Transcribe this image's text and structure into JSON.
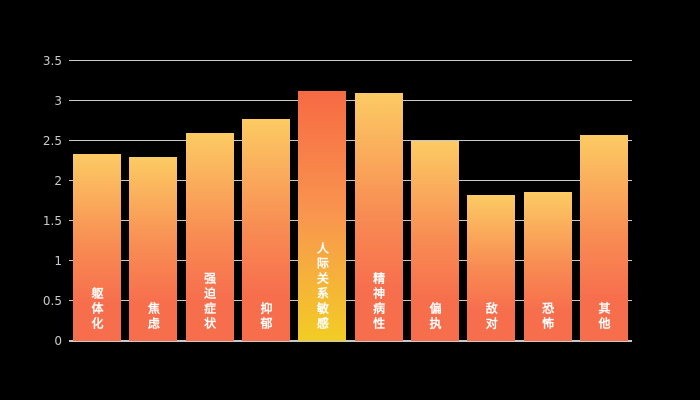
{
  "page": {
    "background": "#000000"
  },
  "chart_data": {
    "type": "bar",
    "title": "",
    "xlabel": "",
    "ylabel": "",
    "categories": [
      "躯体化",
      "焦虑",
      "强迫症状",
      "抑郁",
      "人际关系敏感",
      "精神病性",
      "偏执",
      "敌对",
      "恐怖",
      "其他"
    ],
    "values": [
      2.34,
      2.3,
      2.6,
      2.78,
      3.12,
      3.1,
      2.5,
      1.83,
      1.86,
      2.58
    ],
    "highlight_index": 4,
    "ylim": [
      0,
      3.5
    ],
    "yticks": [
      0,
      0.5,
      1,
      1.5,
      2,
      2.5,
      3,
      3.5
    ],
    "ytick_labels": [
      "0",
      "0.5",
      "1",
      "1.5",
      "2",
      "2.5",
      "3",
      "3.5"
    ],
    "grid": true,
    "legend_position": "none",
    "bar_label_position": "inside-bottom-vertical",
    "colors": {
      "background": "#000000",
      "gridline": "#c9c9c9",
      "axis_text": "#c9c9c9",
      "bar_label_text": "#ffffff",
      "bar_gradient_top": "#fccb63",
      "bar_gradient_mid": "#f88b53",
      "bar_gradient_bottom": "#f76e4d",
      "highlight_gradient_top": "#f76a43",
      "highlight_gradient_mid": "#f9964f",
      "highlight_gradient_bottom": "#f2cd24"
    }
  }
}
